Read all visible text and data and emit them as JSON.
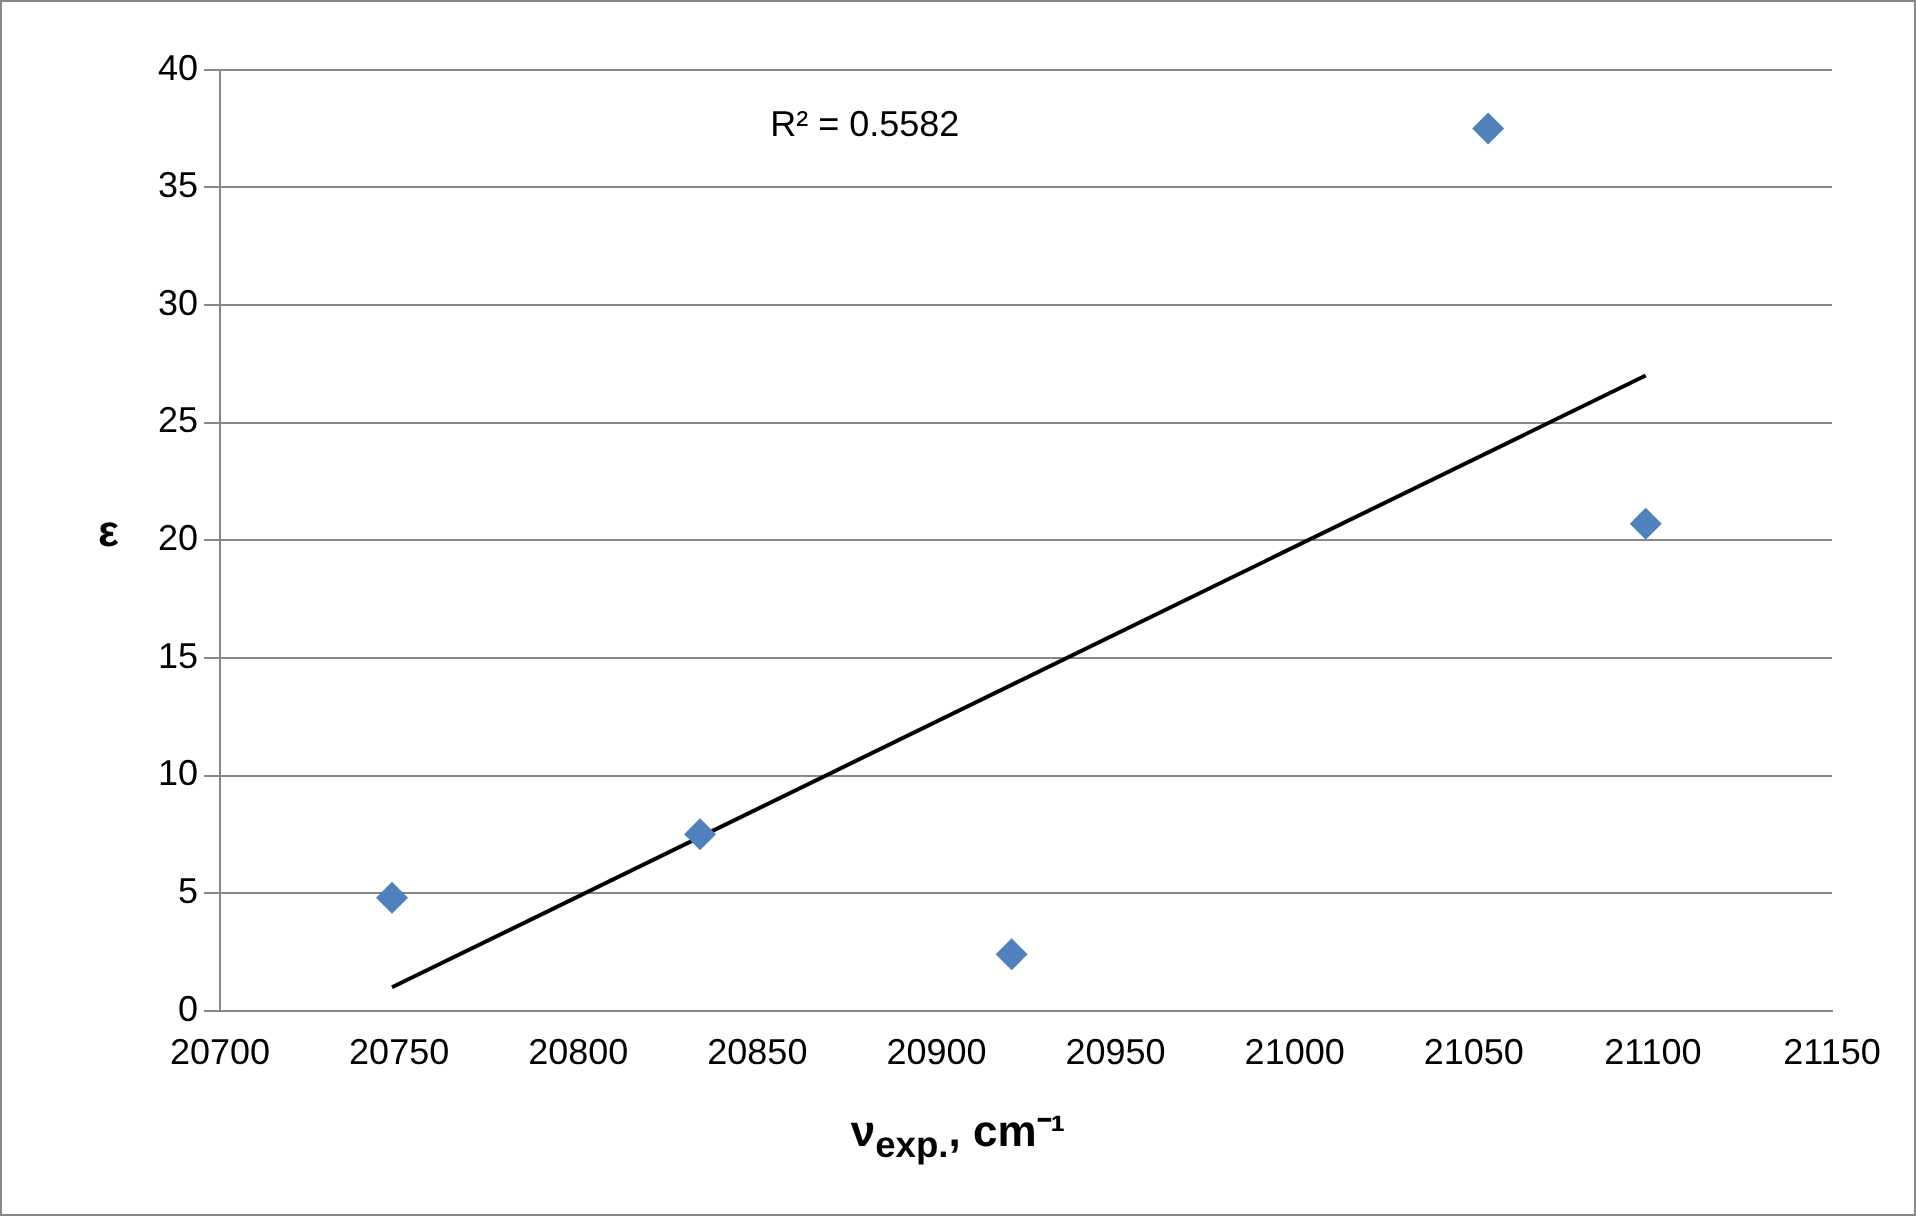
{
  "chart_data": {
    "type": "scatter",
    "xlabel": "ν$_{exp.}$, cm⁻¹",
    "ylabel": "ε",
    "annotations": [
      "R² = 0.5582"
    ],
    "xlim": [
      20700,
      21150
    ],
    "xticks": [
      20700,
      20750,
      20800,
      20850,
      20900,
      20950,
      21000,
      21050,
      21100,
      21150
    ],
    "ylim": [
      0,
      40
    ],
    "yticks": [
      0,
      5,
      10,
      15,
      20,
      25,
      30,
      35,
      40
    ],
    "grid": "y",
    "legend": false,
    "series": [
      {
        "type": "scatter",
        "color": "#4f81bd",
        "marker": "diamond",
        "x": [
          20748,
          20834,
          20921,
          21054,
          21098
        ],
        "values": [
          4.8,
          7.5,
          2.4,
          37.5,
          20.7
        ]
      },
      {
        "type": "line",
        "color": "#000000",
        "marker": "none",
        "x": [
          20748,
          21098
        ],
        "values": [
          1.0,
          27.0
        ]
      }
    ]
  }
}
